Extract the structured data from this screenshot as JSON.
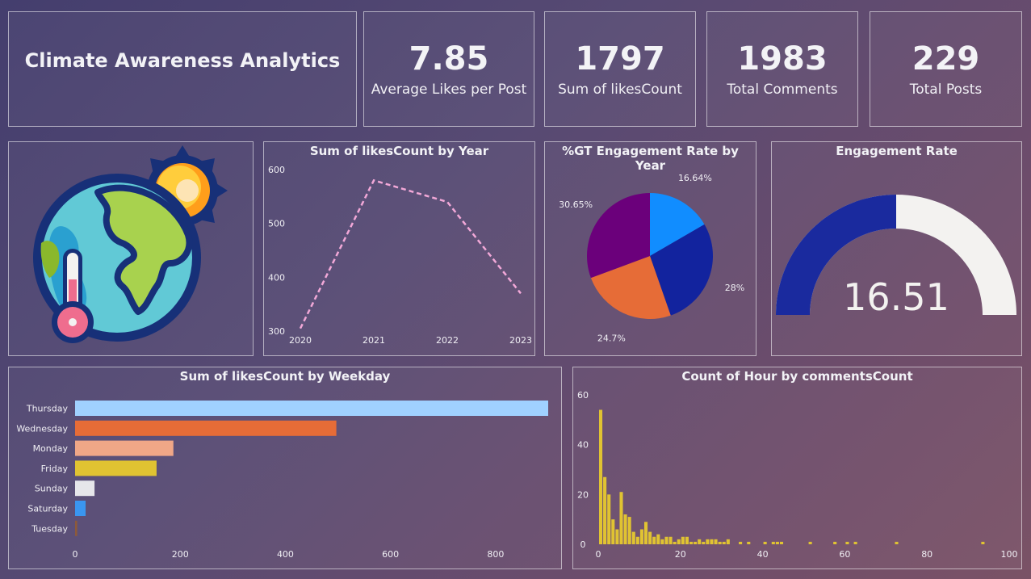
{
  "dashboard": {
    "title": "Climate Awareness Analytics"
  },
  "kpis": [
    {
      "value": "7.85",
      "label": "Average Likes per Post"
    },
    {
      "value": "1797",
      "label": "Sum of likesCount"
    },
    {
      "value": "1983",
      "label": "Total Comments"
    },
    {
      "value": "229",
      "label": "Total Posts"
    }
  ],
  "gauge": {
    "title": "Engagement Rate",
    "value_label": "16.51",
    "fill_fraction": 0.5,
    "colors": {
      "fill": "#1a2a9e",
      "track": "#f3f2f0"
    }
  },
  "chart_data": [
    {
      "type": "line",
      "title": "Sum of likesCount by Year",
      "x": [
        "2020",
        "2021",
        "2022",
        "2023"
      ],
      "values": [
        305,
        580,
        540,
        370
      ],
      "ylim": [
        300,
        600
      ],
      "yticks": [
        300,
        400,
        500,
        600
      ],
      "line_style": "dashed",
      "color": "#f2a8d8"
    },
    {
      "type": "pie",
      "title": "%GT Engagement Rate by Year",
      "slices": [
        {
          "label": "16.64%",
          "value": 16.64,
          "color": "#118dff"
        },
        {
          "label": "28%",
          "value": 28.0,
          "color": "#12239e"
        },
        {
          "label": "24.7%",
          "value": 24.7,
          "color": "#e66c37"
        },
        {
          "label": "30.65%",
          "value": 30.65,
          "color": "#6b007b"
        }
      ]
    },
    {
      "type": "bar",
      "orientation": "horizontal",
      "title": "Sum of likesCount by Weekday",
      "categories": [
        "Thursday",
        "Wednesday",
        "Monday",
        "Friday",
        "Sunday",
        "Saturday",
        "Tuesday"
      ],
      "values": [
        900,
        497,
        187,
        155,
        37,
        20,
        4
      ],
      "colors": [
        "#a0d1ff",
        "#e66c37",
        "#f0a787",
        "#e0c332",
        "#e6e6ea",
        "#3a96f0",
        "#8d5a3a"
      ],
      "xlim": [
        0,
        900
      ],
      "xticks": [
        0,
        200,
        400,
        600,
        800
      ]
    },
    {
      "type": "bar",
      "title": "Count of Hour by commentsCount",
      "x": [
        0,
        1,
        2,
        3,
        4,
        5,
        6,
        7,
        8,
        9,
        10,
        11,
        12,
        13,
        14,
        15,
        16,
        17,
        18,
        19,
        20,
        21,
        22,
        23,
        24,
        25,
        26,
        27,
        28,
        29,
        30,
        31,
        34,
        36,
        40,
        42,
        43,
        44,
        51,
        57,
        60,
        62,
        72,
        93
      ],
      "values": [
        54,
        27,
        20,
        10,
        6,
        21,
        12,
        11,
        5,
        3,
        6,
        9,
        5,
        3,
        4,
        2,
        3,
        3,
        1,
        2,
        3,
        3,
        1,
        1,
        2,
        1,
        2,
        2,
        2,
        1,
        1,
        2,
        1,
        1,
        1,
        1,
        1,
        1,
        1,
        1,
        1,
        1,
        1,
        1
      ],
      "color": "#e0c332",
      "xlim": [
        0,
        100
      ],
      "ylim": [
        0,
        60
      ],
      "xticks": [
        0,
        20,
        40,
        60,
        80,
        100
      ],
      "yticks": [
        0,
        20,
        40,
        60
      ]
    }
  ]
}
